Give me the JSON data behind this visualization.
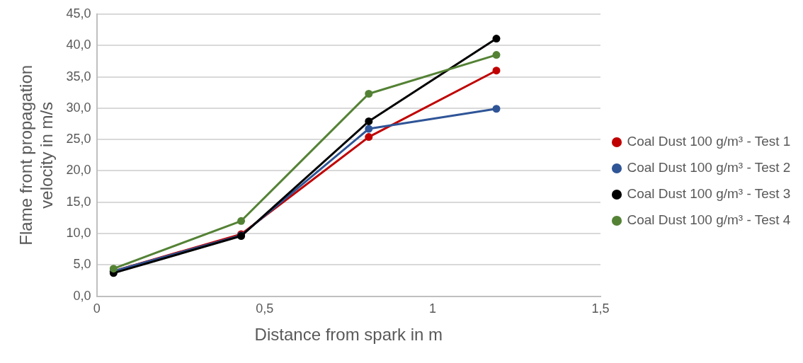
{
  "chart_data": {
    "type": "line",
    "xlabel": "Distance from spark in m",
    "ylabel": "Flame front propagation velocity in m/s",
    "x": [
      0.05,
      0.43,
      0.81,
      1.19
    ],
    "series": [
      {
        "name": "Coal Dust 100 g/m³ - Test 1",
        "color": "#c00000",
        "values": [
          4.0,
          9.9,
          25.4,
          36.0
        ]
      },
      {
        "name": "Coal Dust 100 g/m³ - Test 2",
        "color": "#2f5597",
        "values": [
          4.0,
          9.7,
          26.7,
          29.9
        ]
      },
      {
        "name": "Coal Dust 100 g/m³ - Test 3",
        "color": "#000000",
        "values": [
          3.7,
          9.6,
          27.9,
          41.1
        ]
      },
      {
        "name": "Coal Dust 100 g/m³ - Test 4",
        "color": "#548235",
        "values": [
          4.4,
          12.0,
          32.3,
          38.5
        ]
      }
    ],
    "xlim": [
      0,
      1.5
    ],
    "xticks": [
      0,
      {
        "value": 0.5,
        "label": "0,5"
      },
      1,
      {
        "value": 1.5,
        "label": "1,5"
      }
    ],
    "ylim": [
      0,
      45
    ],
    "yticks": [
      {
        "value": 0,
        "label": "0,0"
      },
      {
        "value": 5,
        "label": "5,0"
      },
      {
        "value": 10,
        "label": "10,0"
      },
      {
        "value": 15,
        "label": "15,0"
      },
      {
        "value": 20,
        "label": "20,0"
      },
      {
        "value": 25,
        "label": "25,0"
      },
      {
        "value": 30,
        "label": "30,0"
      },
      {
        "value": 35,
        "label": "35,0"
      },
      {
        "value": 40,
        "label": "40,0"
      },
      {
        "value": 45,
        "label": "45,0"
      }
    ],
    "grid": "y",
    "legend": "right",
    "marker": "circle",
    "line_style": "solid"
  }
}
